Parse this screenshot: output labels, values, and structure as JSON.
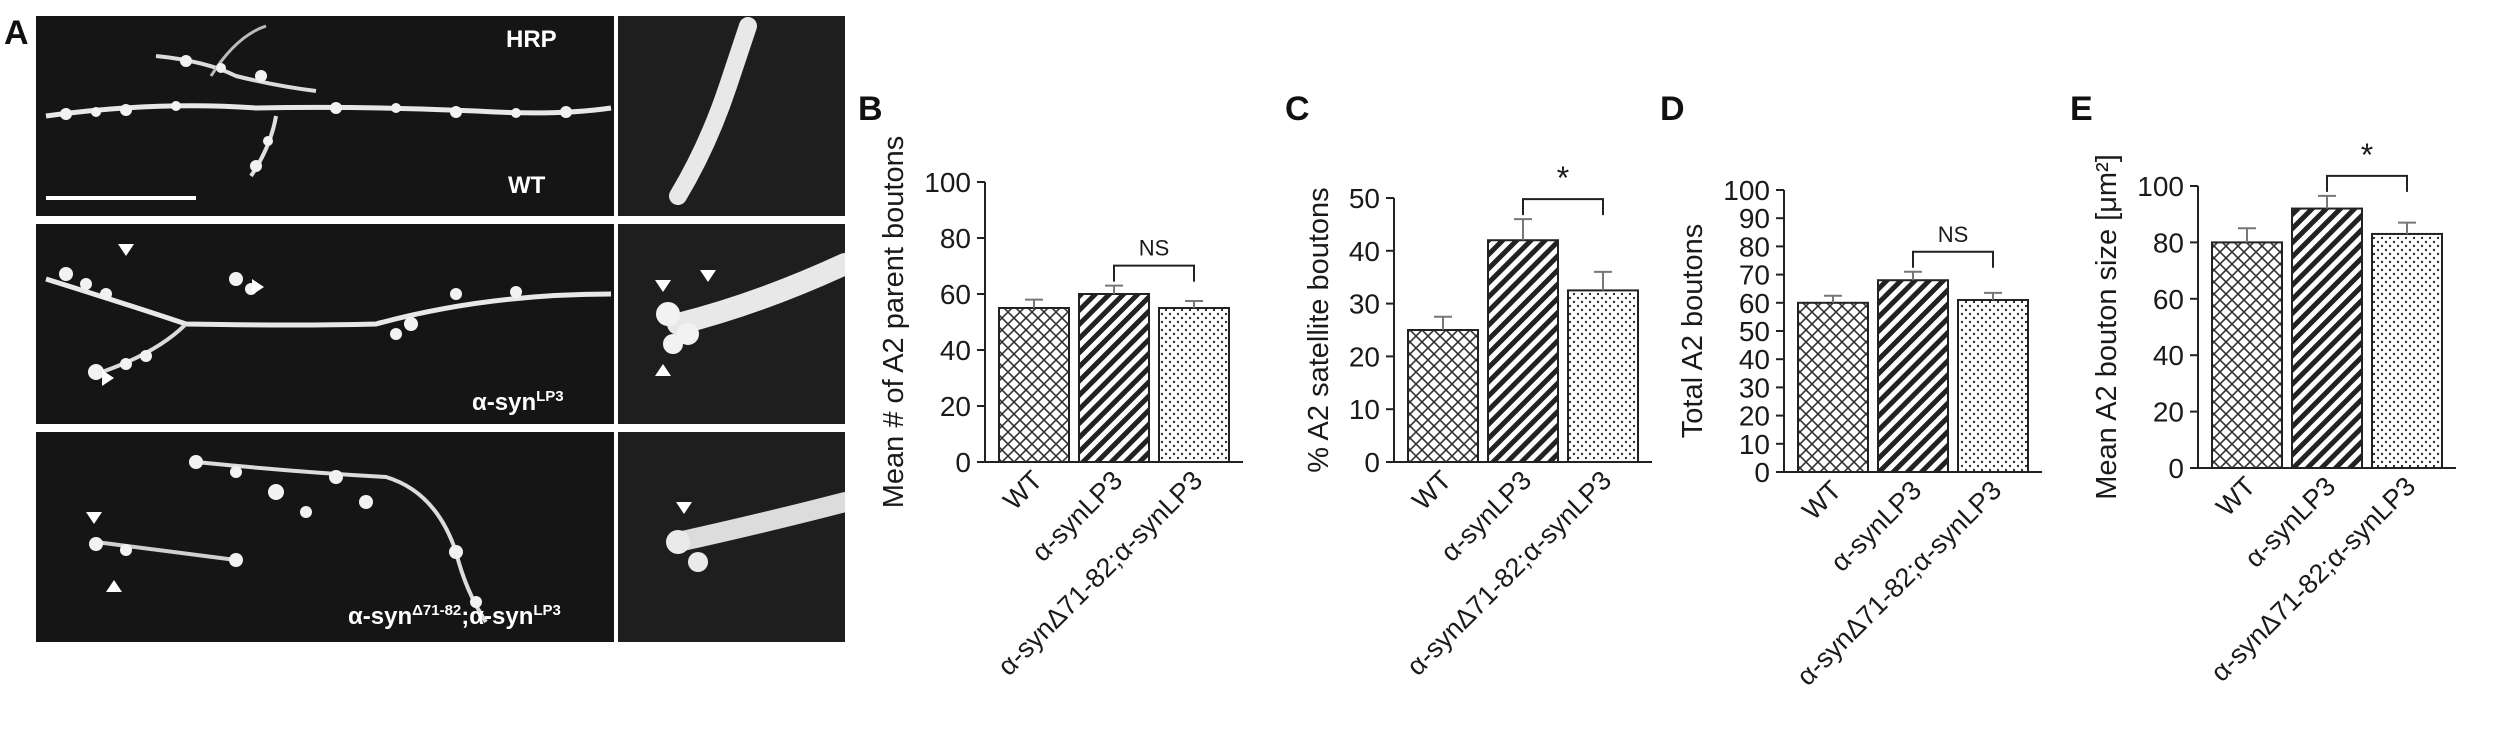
{
  "panels": {
    "A": "A",
    "B": "B",
    "C": "C",
    "D": "D",
    "E": "E"
  },
  "micrographs": {
    "stain_label": "HRP",
    "genotypes": [
      {
        "id": "wt",
        "label": "WT"
      },
      {
        "id": "lp3",
        "label_main": "α-syn",
        "label_sup": "LP3"
      },
      {
        "id": "delta",
        "label_main": "α-syn",
        "label_sup": "Δ71-82",
        "label_mid": ";α-syn",
        "label_sup2": "LP3"
      }
    ]
  },
  "chart_data": [
    {
      "type": "bar",
      "panel": "B",
      "ylabel": "Mean # of  A2 parent boutons",
      "ylim": [
        0,
        100
      ],
      "yticks": [
        0,
        20,
        40,
        60,
        80,
        100
      ],
      "categories": [
        "WT",
        "α-synLP3",
        "α-synΔ71-82;α-synLP3"
      ],
      "values": [
        55,
        60,
        55
      ],
      "errors": [
        3,
        3,
        2.5
      ],
      "patterns": [
        "crosshatch",
        "diagonal",
        "dots"
      ],
      "significance": {
        "from": 1,
        "to": 2,
        "label": "NS"
      }
    },
    {
      "type": "bar",
      "panel": "C",
      "ylabel": "% A2 satellite boutons",
      "ylim": [
        0,
        50
      ],
      "yticks": [
        0,
        10,
        20,
        30,
        40,
        50
      ],
      "categories": [
        "WT",
        "α-synLP3",
        "α-synΔ71-82;α-synLP3"
      ],
      "values": [
        25,
        42,
        32.5
      ],
      "errors": [
        2.5,
        4,
        3.5
      ],
      "patterns": [
        "crosshatch",
        "diagonal",
        "dots"
      ],
      "significance": {
        "from": 1,
        "to": 2,
        "label": "*"
      }
    },
    {
      "type": "bar",
      "panel": "D",
      "ylabel": "Total A2 boutons",
      "ylim": [
        0,
        100
      ],
      "yticks": [
        0,
        10,
        20,
        30,
        40,
        50,
        60,
        70,
        80,
        90,
        100
      ],
      "categories": [
        "WT",
        "α-synLP3",
        "α-synΔ71-82;α-synLP3"
      ],
      "values": [
        60,
        68,
        61
      ],
      "errors": [
        2.5,
        3,
        2.5
      ],
      "patterns": [
        "crosshatch",
        "diagonal",
        "dots"
      ],
      "significance": {
        "from": 1,
        "to": 2,
        "label": "NS"
      }
    },
    {
      "type": "bar",
      "panel": "E",
      "ylabel": "Mean A2 bouton size [μm²]",
      "ylim": [
        0,
        100
      ],
      "yticks": [
        0,
        20,
        40,
        60,
        80,
        100
      ],
      "categories": [
        "WT",
        "α-synLP3",
        "α-synΔ71-82;α-synLP3"
      ],
      "values": [
        80,
        92,
        83
      ],
      "errors": [
        5,
        4.5,
        4
      ],
      "patterns": [
        "crosshatch",
        "diagonal",
        "dots"
      ],
      "significance": {
        "from": 1,
        "to": 2,
        "label": "*"
      }
    }
  ]
}
